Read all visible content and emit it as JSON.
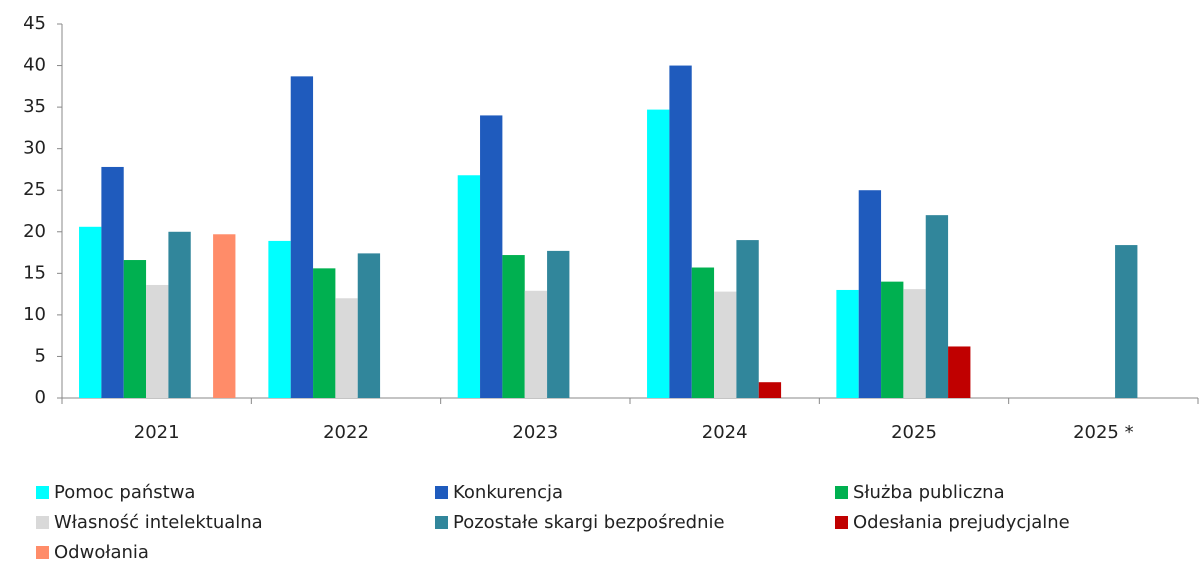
{
  "chart_data": {
    "type": "bar",
    "categories": [
      "2021",
      "2022",
      "2023",
      "2024",
      "2025",
      "2025 *"
    ],
    "series": [
      {
        "name": "Pomoc państwa",
        "color": "#00ffff",
        "values": [
          20.6,
          18.9,
          26.8,
          34.7,
          13.0,
          null
        ]
      },
      {
        "name": "Konkurencja",
        "color": "#1f5bbd",
        "values": [
          27.8,
          38.7,
          34.0,
          40.0,
          25.0,
          null
        ]
      },
      {
        "name": "Służba publiczna",
        "color": "#00b050",
        "values": [
          16.6,
          15.6,
          17.2,
          15.7,
          14.0,
          null
        ]
      },
      {
        "name": "Własność intelektualna",
        "color": "#d9d9d9",
        "values": [
          13.6,
          12.0,
          12.9,
          12.8,
          13.1,
          null
        ]
      },
      {
        "name": "Pozostałe skargi bezpośrednie",
        "color": "#31869b",
        "values": [
          20.0,
          17.4,
          17.7,
          19.0,
          22.0,
          18.4
        ]
      },
      {
        "name": "Odesłania prejudycjalne",
        "color": "#c00000",
        "values": [
          null,
          null,
          null,
          1.9,
          6.2,
          null
        ]
      },
      {
        "name": "Odwołania",
        "color": "#ff8c69",
        "values": [
          19.7,
          null,
          null,
          null,
          null,
          null
        ]
      }
    ],
    "ylim": [
      0,
      45
    ],
    "yticks": [
      0,
      5,
      10,
      15,
      20,
      25,
      30,
      35,
      40,
      45
    ],
    "grid": false
  }
}
